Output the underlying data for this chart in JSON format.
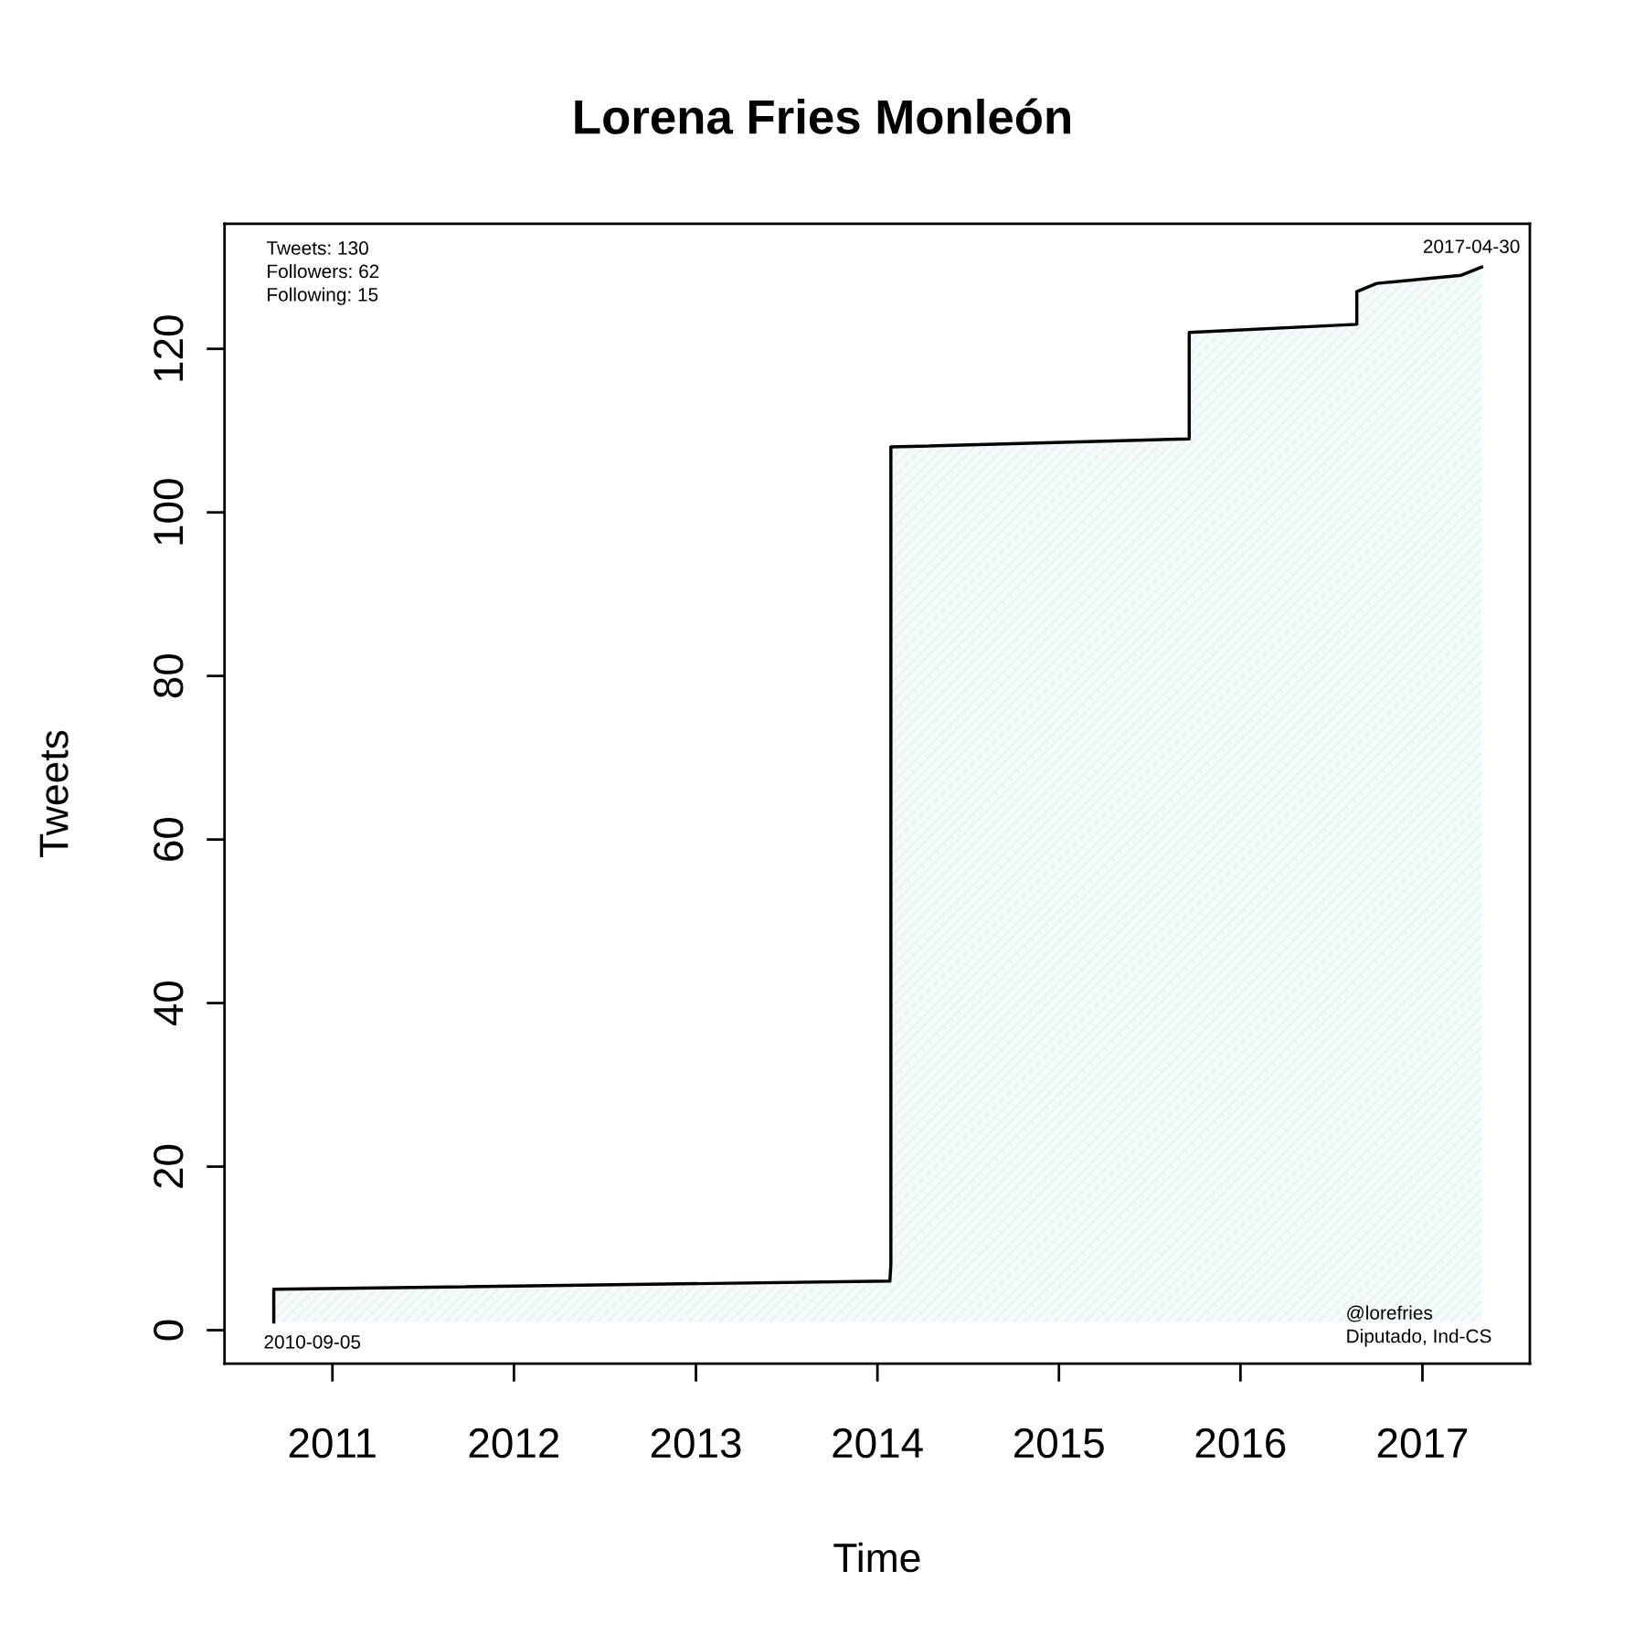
{
  "chart_data": {
    "type": "area",
    "title": "Lorena Fries Monleón",
    "xlabel": "Time",
    "ylabel": "Tweets",
    "x": [
      "2010-09-05",
      "2010-09-05",
      "2014-01-26",
      "2014-01-28",
      "2014-01-28",
      "2015-09-20",
      "2015-09-20",
      "2016-08-22",
      "2016-08-22",
      "2016-10-01",
      "2017-03-20",
      "2017-04-30"
    ],
    "series": [
      {
        "color": "#000000",
        "values": [
          1,
          5,
          6,
          8,
          108,
          109,
          122,
          123,
          127,
          128,
          129,
          130
        ]
      }
    ],
    "xlim": [
      "2010-05-29",
      "2017-08-05"
    ],
    "ylim": [
      -4.1,
      135.3
    ],
    "xticks": [
      {
        "value": "2011-01-01",
        "label": "2011"
      },
      {
        "value": "2012-01-01",
        "label": "2012"
      },
      {
        "value": "2013-01-01",
        "label": "2013"
      },
      {
        "value": "2014-01-01",
        "label": "2014"
      },
      {
        "value": "2015-01-01",
        "label": "2015"
      },
      {
        "value": "2016-01-01",
        "label": "2016"
      },
      {
        "value": "2017-01-01",
        "label": "2017"
      }
    ],
    "yticks": [
      0,
      20,
      40,
      60,
      80,
      100,
      120
    ],
    "grid": false,
    "line_style": "solid",
    "marker": "none",
    "annotations": [
      "Tweets: 130\nFollowers: 62\nFollowing: 15",
      {
        "text": "2010-09-05",
        "x": "2010-09-05",
        "y": 1
      },
      {
        "text": "2017-04-30",
        "x": "2017-04-30",
        "y": 130
      },
      "@lorefries\nDiputado, Ind-CS"
    ]
  }
}
